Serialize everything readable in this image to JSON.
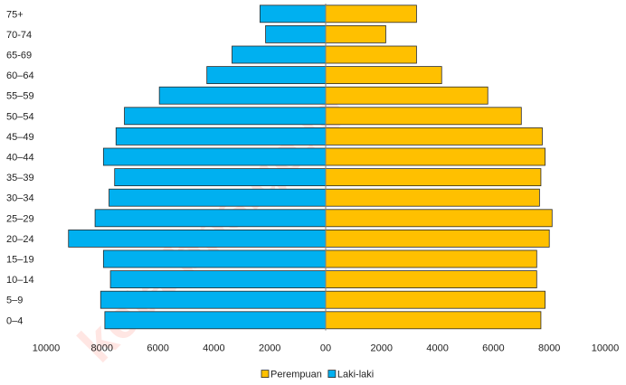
{
  "chart_data": {
    "type": "bar",
    "orientation": "horizontal-pyramid",
    "categories": [
      "75+",
      "70-74",
      "65-69",
      "60–64",
      "55–59",
      "50–54",
      "45–49",
      "40–44",
      "35–39",
      "30–34",
      "25–29",
      "20–24",
      "15–19",
      "10–14",
      "5–9",
      "0–4"
    ],
    "series": [
      {
        "name": "Perempuan",
        "side": "right",
        "color": "#FFC000",
        "values": [
          3250,
          2150,
          3250,
          4150,
          5800,
          7000,
          7750,
          7850,
          7700,
          7650,
          8100,
          8000,
          7550,
          7550,
          7850,
          7700
        ]
      },
      {
        "name": "Laki-laki",
        "side": "left",
        "color": "#00B0F0",
        "values": [
          2350,
          2150,
          3350,
          4250,
          5950,
          7200,
          7500,
          7950,
          7550,
          7750,
          8250,
          9200,
          7950,
          7700,
          8050,
          7900
        ]
      }
    ],
    "x_ticks": [
      "10000",
      "8000",
      "6000",
      "4000",
      "2000",
      "00",
      "2000",
      "4000",
      "6000",
      "8000",
      "10000"
    ],
    "xlim": [
      -10000,
      10000
    ],
    "title": "",
    "xlabel": "",
    "ylabel": "",
    "grid": false,
    "legend_position": "bottom",
    "legend": [
      "Perempuan",
      "Laki-laki"
    ]
  },
  "watermark": {
    "text": "kota.bps.go.id",
    "color": "#FF3A2A"
  }
}
